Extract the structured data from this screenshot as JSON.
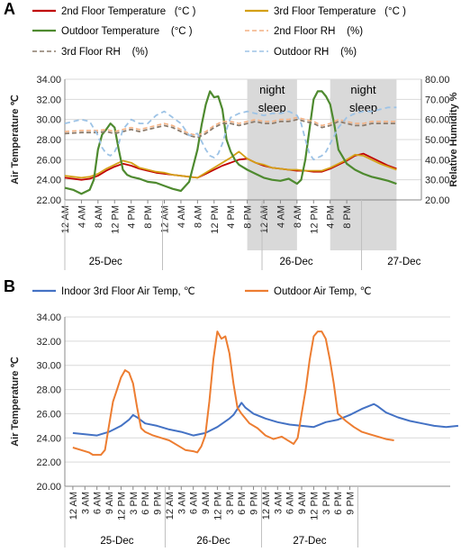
{
  "panels": {
    "a": "A",
    "b": "B"
  },
  "colors": {
    "floor2_temp": "#c00000",
    "floor3_temp": "#d4a017",
    "outdoor_temp_a": "#4e8a2f",
    "floor2_rh": "#f4b183",
    "floor3_rh": "#8c7b6b",
    "outdoor_rh": "#9dc3e6",
    "indoor_b": "#4472c4",
    "outdoor_b": "#ed7d31",
    "shade": "#d9d9d9",
    "grid": "#d9d9d9"
  },
  "chart_data": [
    {
      "type": "line",
      "panel": "A",
      "legend": [
        "2nd Floor Temperature   (°C )",
        "3rd Floor Temperature   (°C )",
        "Outdoor Temperature    (°C )",
        "2nd Floor RH    (%)",
        "3rd Floor RH    (%)",
        "Outdoor RH    (%)"
      ],
      "ylabel": "Air Temperature ℃",
      "y2label": "Relative Humidity %",
      "ylim": [
        22,
        34
      ],
      "y2lim": [
        20,
        80
      ],
      "yticks": [
        "22.00",
        "24.00",
        "26.00",
        "28.00",
        "30.00",
        "32.00",
        "34.00"
      ],
      "y2ticks": [
        "20.00",
        "30.00",
        "40.00",
        "50.00",
        "60.00",
        "70.00",
        "80.00"
      ],
      "xticks": [
        "12 AM",
        "4 AM",
        "8 AM",
        "12 PM",
        "4 PM",
        "8 PM",
        "12 AM",
        "4 AM",
        "8 AM",
        "12 PM",
        "4 PM",
        "8 PM",
        "12 AM",
        "4 AM",
        "8 AM",
        "12 PM",
        "4 PM",
        "8 PM"
      ],
      "dates": [
        "25-Dec",
        "26-Dec",
        "27-Dec"
      ],
      "annotations": [
        "night\nsleep",
        "night\nsleep"
      ],
      "night_spans_hours": [
        [
          44,
          56
        ],
        [
          64,
          80
        ]
      ],
      "series": [
        {
          "name": "2nd Floor Temperature",
          "axis": "left",
          "x": [
            0,
            2,
            4,
            6,
            8,
            10,
            12,
            14,
            16,
            18,
            20,
            22,
            24,
            26,
            28,
            30,
            32,
            34,
            36,
            38,
            40,
            42,
            44,
            46,
            48,
            50,
            52,
            54,
            56,
            58,
            60,
            62,
            64,
            66,
            68,
            70,
            72,
            74,
            76,
            78,
            80
          ],
          "y": [
            24.2,
            24.1,
            24.0,
            24.1,
            24.4,
            24.9,
            25.3,
            25.6,
            25.4,
            25.1,
            24.9,
            24.7,
            24.6,
            24.5,
            24.4,
            24.3,
            24.2,
            24.6,
            25.0,
            25.4,
            25.7,
            26.0,
            26.1,
            25.7,
            25.4,
            25.2,
            25.1,
            25.0,
            24.9,
            24.9,
            24.8,
            24.8,
            25.1,
            25.5,
            25.9,
            26.4,
            26.6,
            26.2,
            25.8,
            25.4,
            25.1
          ]
        },
        {
          "name": "3rd Floor Temperature",
          "axis": "left",
          "x": [
            0,
            2,
            4,
            6,
            8,
            10,
            12,
            14,
            16,
            18,
            20,
            22,
            24,
            26,
            28,
            30,
            32,
            34,
            36,
            38,
            40,
            42,
            44,
            46,
            48,
            50,
            52,
            54,
            56,
            58,
            60,
            62,
            64,
            66,
            68,
            70,
            72,
            74,
            76,
            78,
            80
          ],
          "y": [
            24.4,
            24.3,
            24.2,
            24.3,
            24.6,
            25.1,
            25.5,
            25.9,
            25.7,
            25.2,
            25.0,
            24.8,
            24.7,
            24.5,
            24.4,
            24.3,
            24.2,
            24.7,
            25.2,
            25.7,
            26.2,
            26.8,
            26.1,
            25.7,
            25.5,
            25.2,
            25.1,
            25.0,
            25.0,
            24.9,
            24.9,
            24.9,
            25.2,
            25.6,
            26.0,
            26.5,
            26.4,
            26.0,
            25.6,
            25.3,
            25.0
          ]
        },
        {
          "name": "Outdoor Temperature",
          "axis": "left",
          "x": [
            0,
            2,
            4,
            6,
            7,
            8,
            9,
            10,
            11,
            12,
            13,
            14,
            15,
            16,
            17,
            18,
            20,
            22,
            24,
            26,
            28,
            30,
            32,
            33,
            34,
            35,
            36,
            37,
            38,
            39,
            40,
            41,
            42,
            44,
            46,
            48,
            50,
            52,
            54,
            56,
            57,
            58,
            59,
            60,
            61,
            62,
            63,
            64,
            65,
            66,
            68,
            70,
            72,
            74,
            76,
            78,
            80
          ],
          "y": [
            23.2,
            23.0,
            22.6,
            23.0,
            24.0,
            27.0,
            28.5,
            29.0,
            29.6,
            29.2,
            27.0,
            25.0,
            24.5,
            24.3,
            24.2,
            24.1,
            23.8,
            23.7,
            23.4,
            23.1,
            22.9,
            23.8,
            27.0,
            29.5,
            31.5,
            32.8,
            32.2,
            32.3,
            31.0,
            28.0,
            26.8,
            26.0,
            25.5,
            25.0,
            24.6,
            24.2,
            24.0,
            23.9,
            24.1,
            23.6,
            24.0,
            26.0,
            29.0,
            32.0,
            32.8,
            32.8,
            32.3,
            31.5,
            29.5,
            27.0,
            25.6,
            25.0,
            24.6,
            24.3,
            24.1,
            23.9,
            23.6
          ]
        },
        {
          "name": "2nd Floor RH",
          "axis": "right",
          "x": [
            0,
            4,
            8,
            10,
            12,
            14,
            16,
            18,
            20,
            22,
            24,
            26,
            28,
            30,
            32,
            34,
            36,
            38,
            40,
            42,
            44,
            46,
            48,
            50,
            52,
            54,
            56,
            58,
            60,
            62,
            64,
            66,
            68,
            70,
            72,
            74,
            76,
            78,
            80
          ],
          "y": [
            54,
            54.5,
            54.5,
            55,
            54,
            55,
            56,
            55,
            56,
            57,
            58,
            57,
            55,
            53,
            52,
            54,
            57,
            59,
            59,
            58,
            59,
            60,
            59,
            59,
            60,
            60,
            61,
            60,
            59,
            57,
            58,
            60,
            59,
            58,
            58,
            59,
            59,
            59,
            59
          ]
        },
        {
          "name": "3rd Floor RH",
          "axis": "right",
          "x": [
            0,
            4,
            8,
            10,
            12,
            14,
            16,
            18,
            20,
            22,
            24,
            26,
            28,
            30,
            32,
            34,
            36,
            38,
            40,
            42,
            44,
            46,
            48,
            50,
            52,
            54,
            56,
            58,
            60,
            62,
            64,
            66,
            68,
            70,
            72,
            74,
            76,
            78,
            80
          ],
          "y": [
            53,
            53.5,
            53.5,
            54,
            53,
            54,
            55,
            54,
            55,
            56,
            57,
            56,
            54,
            52,
            51,
            53,
            56,
            58,
            58,
            57,
            58,
            59,
            58,
            58,
            59,
            59,
            60,
            59,
            58,
            56,
            57,
            59,
            58,
            57,
            57,
            58,
            58,
            58,
            58
          ]
        },
        {
          "name": "Outdoor RH",
          "axis": "right",
          "x": [
            0,
            2,
            4,
            6,
            8,
            9,
            10,
            11,
            12,
            13,
            14,
            16,
            18,
            20,
            22,
            24,
            26,
            28,
            30,
            32,
            33,
            34,
            35,
            36,
            37,
            38,
            39,
            40,
            42,
            44,
            46,
            48,
            50,
            52,
            54,
            56,
            57,
            58,
            59,
            60,
            61,
            62,
            63,
            64,
            66,
            68,
            70,
            72,
            74,
            76,
            78,
            80
          ],
          "y": [
            58,
            59,
            60,
            59,
            52,
            46,
            43,
            42,
            44,
            48,
            55,
            60,
            58,
            58,
            62,
            64,
            61,
            58,
            52,
            53,
            49,
            45,
            42,
            41,
            43,
            48,
            55,
            61,
            63,
            64,
            63,
            62,
            63,
            63,
            64,
            62,
            58,
            50,
            43,
            40,
            41,
            42,
            44,
            48,
            56,
            61,
            63,
            64,
            64,
            65,
            66,
            66
          ]
        }
      ]
    },
    {
      "type": "line",
      "panel": "B",
      "legend": [
        "Indoor 3rd Floor Air Temp, ℃",
        "Outdoor Air Temp, ℃"
      ],
      "ylabel": "Air Temperature ℃",
      "ylim": [
        20,
        34
      ],
      "yticks": [
        "20.00",
        "22.00",
        "24.00",
        "26.00",
        "28.00",
        "30.00",
        "32.00",
        "34.00"
      ],
      "xticks": [
        "12 AM",
        "3 AM",
        "6 AM",
        "9 AM",
        "12 PM",
        "3 PM",
        "6 PM",
        "9 PM",
        "12 AM",
        "3 AM",
        "6 AM",
        "9 AM",
        "12 PM",
        "3 PM",
        "6 PM",
        "9 PM",
        "12 AM",
        "3 AM",
        "6 AM",
        "9 AM",
        "12 PM",
        "3 PM",
        "6 PM",
        "9 PM"
      ],
      "dates": [
        "25-Dec",
        "26-Dec",
        "27-Dec"
      ],
      "series": [
        {
          "name": "Indoor 3rd Floor Air Temp",
          "x": [
            0,
            3,
            6,
            9,
            12,
            14,
            15,
            16,
            18,
            21,
            24,
            27,
            30,
            33,
            36,
            39,
            40,
            42,
            43,
            45,
            48,
            51,
            54,
            57,
            60,
            63,
            66,
            69,
            72,
            75,
            76,
            78,
            81,
            84,
            87,
            90,
            93,
            96
          ],
          "y": [
            24.4,
            24.3,
            24.2,
            24.5,
            25.0,
            25.5,
            25.9,
            25.7,
            25.2,
            25.0,
            24.7,
            24.5,
            24.2,
            24.4,
            24.9,
            25.6,
            25.9,
            26.9,
            26.5,
            26.0,
            25.6,
            25.3,
            25.1,
            25.0,
            24.9,
            25.3,
            25.5,
            25.9,
            26.4,
            26.8,
            26.6,
            26.1,
            25.7,
            25.4,
            25.2,
            25.0,
            24.9,
            25.0
          ]
        },
        {
          "name": "Outdoor Air Temp",
          "x": [
            0,
            2,
            4,
            5,
            6,
            7,
            8,
            9,
            10,
            11,
            12,
            13,
            14,
            15,
            16,
            17,
            18,
            20,
            22,
            24,
            26,
            28,
            30,
            31,
            32,
            33,
            34,
            35,
            36,
            37,
            38,
            39,
            40,
            41,
            42,
            44,
            46,
            48,
            50,
            52,
            54,
            55,
            56,
            57,
            58,
            59,
            60,
            61,
            62,
            63,
            64,
            65,
            66,
            68,
            70,
            72,
            74,
            76,
            78,
            80
          ],
          "y": [
            23.2,
            23.0,
            22.8,
            22.6,
            22.6,
            22.6,
            23.0,
            25.0,
            27.0,
            28.0,
            29.0,
            29.6,
            29.4,
            28.5,
            26.5,
            24.8,
            24.5,
            24.2,
            24.0,
            23.8,
            23.4,
            23.0,
            22.9,
            22.8,
            23.3,
            24.2,
            27.0,
            30.5,
            32.8,
            32.2,
            32.4,
            31.0,
            28.5,
            26.5,
            26.0,
            25.2,
            24.8,
            24.2,
            23.9,
            24.1,
            23.7,
            23.5,
            24.0,
            26.0,
            28.0,
            30.5,
            32.4,
            32.8,
            32.8,
            32.2,
            30.5,
            28.5,
            26.0,
            25.4,
            24.9,
            24.5,
            24.3,
            24.1,
            23.9,
            23.8
          ]
        }
      ]
    }
  ]
}
